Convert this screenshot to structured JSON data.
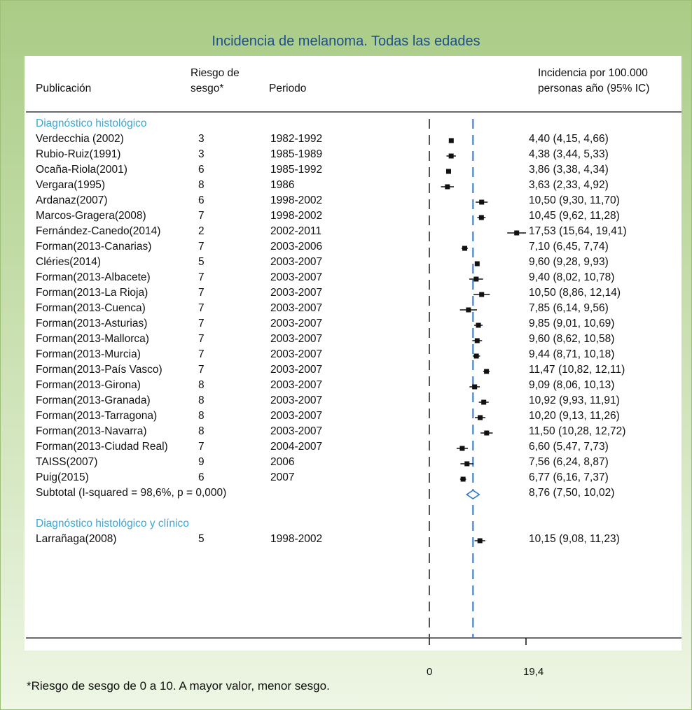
{
  "chart_data": {
    "type": "forest",
    "title": "Incidencia de melanoma. Todas las edades",
    "columns": {
      "publication": "Publicación",
      "risk_line1": "Riesgo de",
      "risk_line2": "sesgo*",
      "period": "Periodo",
      "effect_line1": "Incidencia por 100.000",
      "effect_line2": "personas año (95% IC)"
    },
    "x_ticks": [
      "0",
      "19,4"
    ],
    "x_range": [
      0,
      19.4
    ],
    "overall_line": 8.76,
    "footnote": "*Riesgo de sesgo de 0 a 10. A mayor valor, menor sesgo.",
    "groups": [
      {
        "name": "Diagnóstico histológico",
        "studies": [
          {
            "pub": "Verdecchia (2002)",
            "risk": "3",
            "period": "1982-1992",
            "ci_text": "4,40 (4,15, 4,66)",
            "est": 4.4,
            "lo": 4.15,
            "hi": 4.66
          },
          {
            "pub": "Rubio-Ruiz(1991)",
            "risk": "3",
            "period": "1985-1989",
            "ci_text": "4,38 (3,44, 5,33)",
            "est": 4.38,
            "lo": 3.44,
            "hi": 5.33
          },
          {
            "pub": "Ocaña-Riola(2001)",
            "risk": "6",
            "period": "1985-1992",
            "ci_text": "3,86 (3,38, 4,34)",
            "est": 3.86,
            "lo": 3.38,
            "hi": 4.34
          },
          {
            "pub": "Vergara(1995)",
            "risk": "8",
            "period": "1986",
            "ci_text": "3,63 (2,33, 4,92)",
            "est": 3.63,
            "lo": 2.33,
            "hi": 4.92
          },
          {
            "pub": "Ardanaz(2007)",
            "risk": "6",
            "period": "1998-2002",
            "ci_text": "10,50 (9,30, 11,70)",
            "est": 10.5,
            "lo": 9.3,
            "hi": 11.7
          },
          {
            "pub": "Marcos-Gragera(2008)",
            "risk": "7",
            "period": "1998-2002",
            "ci_text": "10,45 (9,62, 11,28)",
            "est": 10.45,
            "lo": 9.62,
            "hi": 11.28
          },
          {
            "pub": "Fernández-Canedo(2014)",
            "risk": "2",
            "period": "2002-2011",
            "ci_text": "17,53 (15,64, 19,41)",
            "est": 17.53,
            "lo": 15.64,
            "hi": 19.41
          },
          {
            "pub": "Forman(2013-Canarias)",
            "risk": "7",
            "period": "2003-2006",
            "ci_text": "7,10 (6,45, 7,74)",
            "est": 7.1,
            "lo": 6.45,
            "hi": 7.74
          },
          {
            "pub": "Cléries(2014)",
            "risk": "5",
            "period": "2003-2007",
            "ci_text": "9,60 (9,28, 9,93)",
            "est": 9.6,
            "lo": 9.28,
            "hi": 9.93
          },
          {
            "pub": "Forman(2013-Albacete)",
            "risk": "7",
            "period": "2003-2007",
            "ci_text": "9,40 (8,02, 10,78)",
            "est": 9.4,
            "lo": 8.02,
            "hi": 10.78
          },
          {
            "pub": "Forman(2013-La Rioja)",
            "risk": "7",
            "period": "2003-2007",
            "ci_text": "10,50 (8,86, 12,14)",
            "est": 10.5,
            "lo": 8.86,
            "hi": 12.14
          },
          {
            "pub": "Forman(2013-Cuenca)",
            "risk": "7",
            "period": "2003-2007",
            "ci_text": "7,85 (6,14, 9,56)",
            "est": 7.85,
            "lo": 6.14,
            "hi": 9.56
          },
          {
            "pub": "Forman(2013-Asturias)",
            "risk": "7",
            "period": "2003-2007",
            "ci_text": "9,85 (9,01, 10,69)",
            "est": 9.85,
            "lo": 9.01,
            "hi": 10.69
          },
          {
            "pub": "Forman(2013-Mallorca)",
            "risk": "7",
            "period": "2003-2007",
            "ci_text": "9,60 (8,62, 10,58)",
            "est": 9.6,
            "lo": 8.62,
            "hi": 10.58
          },
          {
            "pub": "Forman(2013-Murcia)",
            "risk": "7",
            "period": "2003-2007",
            "ci_text": "9,44 (8,71, 10,18)",
            "est": 9.44,
            "lo": 8.71,
            "hi": 10.18
          },
          {
            "pub": "Forman(2013-País Vasco)",
            "risk": "7",
            "period": "2003-2007",
            "ci_text": "11,47 (10,82, 12,11)",
            "est": 11.47,
            "lo": 10.82,
            "hi": 12.11
          },
          {
            "pub": "Forman(2013-Girona)",
            "risk": "8",
            "period": "2003-2007",
            "ci_text": "9,09 (8,06, 10,13)",
            "est": 9.09,
            "lo": 8.06,
            "hi": 10.13
          },
          {
            "pub": "Forman(2013-Granada)",
            "risk": "8",
            "period": "2003-2007",
            "ci_text": "10,92 (9,93, 11,91)",
            "est": 10.92,
            "lo": 9.93,
            "hi": 11.91
          },
          {
            "pub": "Forman(2013-Tarragona)",
            "risk": "8",
            "period": "2003-2007",
            "ci_text": "10,20 (9,13, 11,26)",
            "est": 10.2,
            "lo": 9.13,
            "hi": 11.26
          },
          {
            "pub": "Forman(2013-Navarra)",
            "risk": "8",
            "period": "2003-2007",
            "ci_text": "11,50 (10,28, 12,72)",
            "est": 11.5,
            "lo": 10.28,
            "hi": 12.72
          },
          {
            "pub": "Forman(2013-Ciudad Real)",
            "risk": "7",
            "period": "2004-2007",
            "ci_text": "6,60 (5,47, 7,73)",
            "est": 6.6,
            "lo": 5.47,
            "hi": 7.73
          },
          {
            "pub": "TAISS(2007)",
            "risk": "9",
            "period": "2006",
            "ci_text": "7,56 (6,24, 8,87)",
            "est": 7.56,
            "lo": 6.24,
            "hi": 8.87
          },
          {
            "pub": "Puig(2015)",
            "risk": "6",
            "period": "2007",
            "ci_text": "6,77 (6,16, 7,37)",
            "est": 6.77,
            "lo": 6.16,
            "hi": 7.37
          }
        ],
        "subtotal": {
          "label": "Subtotal  (I-squared = 98,6%, p = 0,000)",
          "ci_text": "8,76 (7,50, 10,02)",
          "est": 8.76,
          "lo": 7.5,
          "hi": 10.02
        }
      },
      {
        "name": "Diagnóstico histológico y clínico",
        "studies": [
          {
            "pub": "Larrañaga(2008)",
            "risk": "5",
            "period": "1998-2002",
            "ci_text": "10,15 (9,08, 11,23)",
            "est": 10.15,
            "lo": 9.08,
            "hi": 11.23
          }
        ]
      }
    ]
  }
}
